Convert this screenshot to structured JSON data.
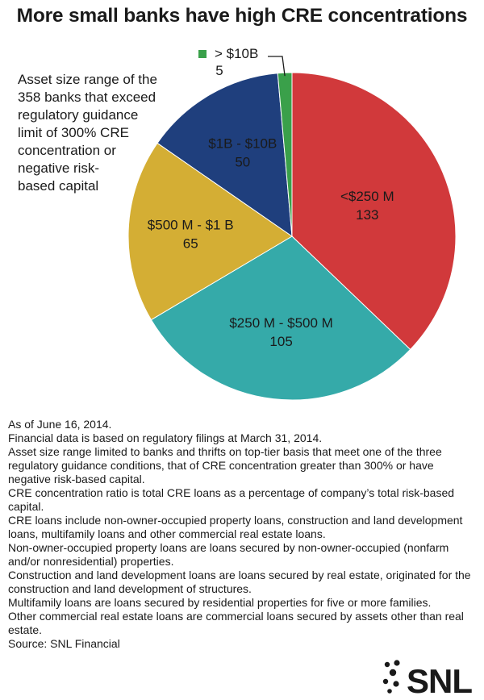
{
  "header": {
    "title": "More small banks have high CRE concentrations"
  },
  "description_lines": [
    "Asset size range of the",
    "358 banks that exceed",
    "regulatory guidance",
    "limit of 300% CRE",
    "concentration or",
    "negative risk-",
    "based capital"
  ],
  "chart_data": {
    "type": "pie",
    "title": "",
    "slices": [
      {
        "label": "<$250 M",
        "value": 133,
        "color": "#d1393b"
      },
      {
        "label": "$250 M - $500 M",
        "value": 105,
        "color": "#35aaa9"
      },
      {
        "label": "$500 M - $1 B",
        "value": 65,
        "color": "#d4ae34"
      },
      {
        "label": "$1B - $10B",
        "value": 50,
        "color": "#1f3f7d"
      },
      {
        "label": "> $10B",
        "value": 5,
        "color": "#3aa04a"
      }
    ],
    "total": 358,
    "start": "12 o'clock, clockwise"
  },
  "notes": [
    "As of June 16, 2014.",
    "Financial data is based on regulatory filings at March 31, 2014.",
    "Asset size range limited to banks and thrifts on top-tier basis that meet one of the three regulatory guidance conditions, that of CRE concentration greater than 300% or have negative risk-based capital.",
    "CRE concentration ratio is total CRE loans as a percentage of company’s total risk-based capital.",
    "CRE loans include non-owner-occupied property loans, construction and land development loans, multifamily loans and other commercial real estate loans.",
    "Non-owner-occupied property loans are loans secured by non-owner-occupied (nonfarm and/or nonresidential) properties.",
    "Construction and land development loans are loans secured by real estate, originated for the construction and land development of structures.",
    "Multifamily loans are loans secured by residential properties for five or more families.",
    "Other commercial real estate loans are commercial loans secured by assets other than real estate.",
    "Source: SNL Financial"
  ],
  "logo": {
    "text": "SNL",
    "color": "#1a1a1a"
  }
}
